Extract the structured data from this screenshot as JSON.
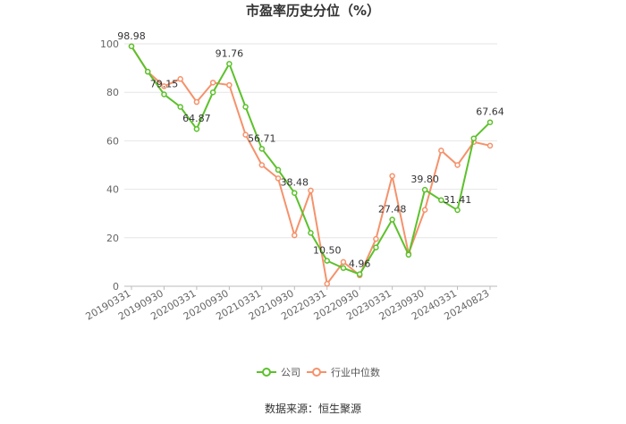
{
  "chart_data": {
    "type": "line",
    "title": "市盈率历史分位（%）",
    "xlabel": "",
    "ylabel": "",
    "ylim": [
      0,
      100
    ],
    "yticks": [
      0,
      20,
      40,
      60,
      80,
      100
    ],
    "grid": true,
    "legend_position": "bottom",
    "xtick_labels": [
      "20190331",
      "20190930",
      "20200331",
      "20200930",
      "20210331",
      "20210930",
      "20220331",
      "20220930",
      "20230331",
      "20230930",
      "20240331",
      "20240823"
    ],
    "x": [
      "20190331",
      "20190630",
      "20190930",
      "20191231",
      "20200331",
      "20200630",
      "20200930",
      "20201231",
      "20210331",
      "20210630",
      "20210930",
      "20211231",
      "20220331",
      "20220630",
      "20220930",
      "20221231",
      "20230331",
      "20230630",
      "20230930",
      "20231231",
      "20240331",
      "20240630",
      "20240823"
    ],
    "series": [
      {
        "name": "公司",
        "color": "#5cc12b",
        "values": [
          98.98,
          88.5,
          79.15,
          74,
          64.87,
          80,
          91.76,
          74,
          56.71,
          48,
          38.48,
          22,
          10.5,
          7.5,
          4.96,
          16,
          27.48,
          13,
          39.8,
          35.5,
          31.41,
          61,
          67.64
        ],
        "labels": {
          "0": "98.98",
          "2": "79.15",
          "4": "64.87",
          "6": "91.76",
          "8": "56.71",
          "10": "38.48",
          "12": "10.50",
          "14": "4.96",
          "16": "27.48",
          "18": "39.80",
          "20": "31.41",
          "22": "67.64"
        }
      },
      {
        "name": "行业中位数",
        "color": "#f5926b",
        "values": [
          99,
          88.5,
          82.5,
          85.5,
          76,
          84,
          83,
          62.5,
          50,
          44.5,
          21,
          39.5,
          1,
          10,
          4.5,
          19.5,
          45.5,
          13.5,
          31.5,
          56,
          50,
          59.5,
          58
        ]
      }
    ]
  },
  "source_text": "数据来源：恒生聚源"
}
